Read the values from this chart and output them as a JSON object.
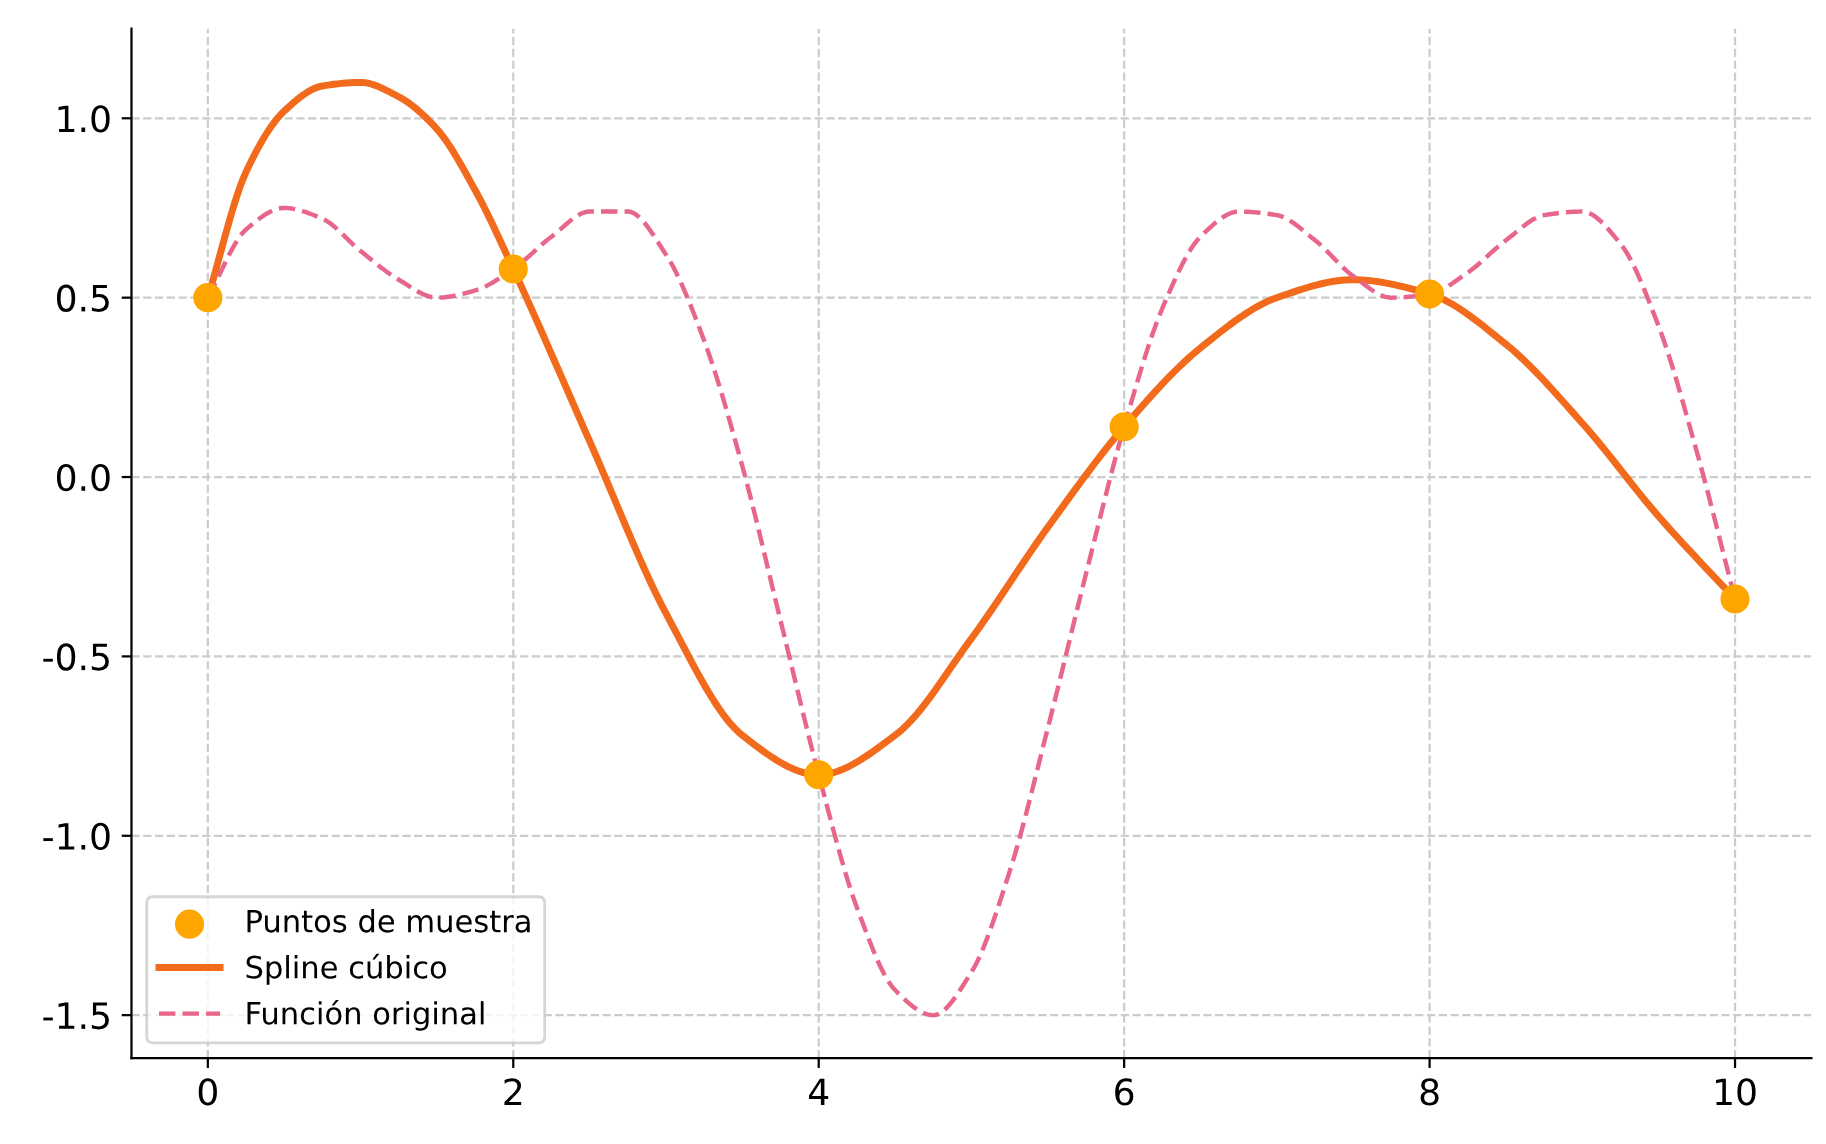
{
  "chart_data": {
    "type": "line",
    "xlim": [
      -0.5,
      10.5
    ],
    "ylim": [
      -1.62,
      1.25
    ],
    "xticks": [
      0,
      2,
      4,
      6,
      8,
      10
    ],
    "yticks": [
      {
        "value": -1.5,
        "label": "-1.5"
      },
      {
        "value": -1.0,
        "label": "-1.0"
      },
      {
        "value": -0.5,
        "label": "-0.5"
      },
      {
        "value": 0.0,
        "label": "0.0"
      },
      {
        "value": 0.5,
        "label": "0.5"
      },
      {
        "value": 1.0,
        "label": "1.0"
      }
    ],
    "grid": true,
    "legend": "bottom left",
    "series": [
      {
        "name": "Puntos de muestra",
        "type": "scatter",
        "marker": "circle",
        "color": "#ffa500",
        "x": [
          0,
          2,
          4,
          6,
          8,
          10
        ],
        "values": [
          0.5,
          0.58,
          -0.83,
          0.14,
          0.51,
          -0.34
        ]
      },
      {
        "name": "Spline cúbico",
        "line_style": "solid",
        "color": "#f26b1d",
        "x": [
          0,
          0.25,
          0.5,
          0.75,
          1.0,
          1.25,
          1.5,
          1.75,
          2,
          2.5,
          3,
          3.5,
          4,
          4.5,
          5,
          5.5,
          6,
          6.5,
          7,
          7.5,
          8,
          8.5,
          9,
          9.5,
          10
        ],
        "values": [
          0.5,
          0.85,
          1.02,
          1.09,
          1.1,
          1.06,
          0.97,
          0.8,
          0.58,
          0.1,
          -0.38,
          -0.72,
          -0.83,
          -0.72,
          -0.45,
          -0.14,
          0.14,
          0.36,
          0.5,
          0.55,
          0.51,
          0.37,
          0.15,
          -0.11,
          -0.34
        ]
      },
      {
        "name": "Función original",
        "line_style": "dashed",
        "color": "#e8668a",
        "x": [
          0,
          0.25,
          0.5,
          0.75,
          1.0,
          1.25,
          1.5,
          1.75,
          2.0,
          2.25,
          2.5,
          2.75,
          3.0,
          3.25,
          3.5,
          3.75,
          4.0,
          4.25,
          4.5,
          4.75,
          5.0,
          5.25,
          5.5,
          5.75,
          6.0,
          6.25,
          6.5,
          6.75,
          7.0,
          7.25,
          7.5,
          7.75,
          8.0,
          8.25,
          8.5,
          8.75,
          9.0,
          9.25,
          9.5,
          9.75,
          10
        ],
        "values": [
          0.5,
          0.69,
          0.75,
          0.72,
          0.63,
          0.55,
          0.5,
          0.52,
          0.58,
          0.67,
          0.74,
          0.74,
          0.62,
          0.38,
          0.03,
          -0.4,
          -0.83,
          -1.2,
          -1.43,
          -1.5,
          -1.38,
          -1.1,
          -0.7,
          -0.27,
          0.14,
          0.47,
          0.67,
          0.74,
          0.73,
          0.66,
          0.56,
          0.5,
          0.51,
          0.57,
          0.66,
          0.73,
          0.74,
          0.65,
          0.42,
          0.07,
          -0.34
        ]
      }
    ]
  }
}
